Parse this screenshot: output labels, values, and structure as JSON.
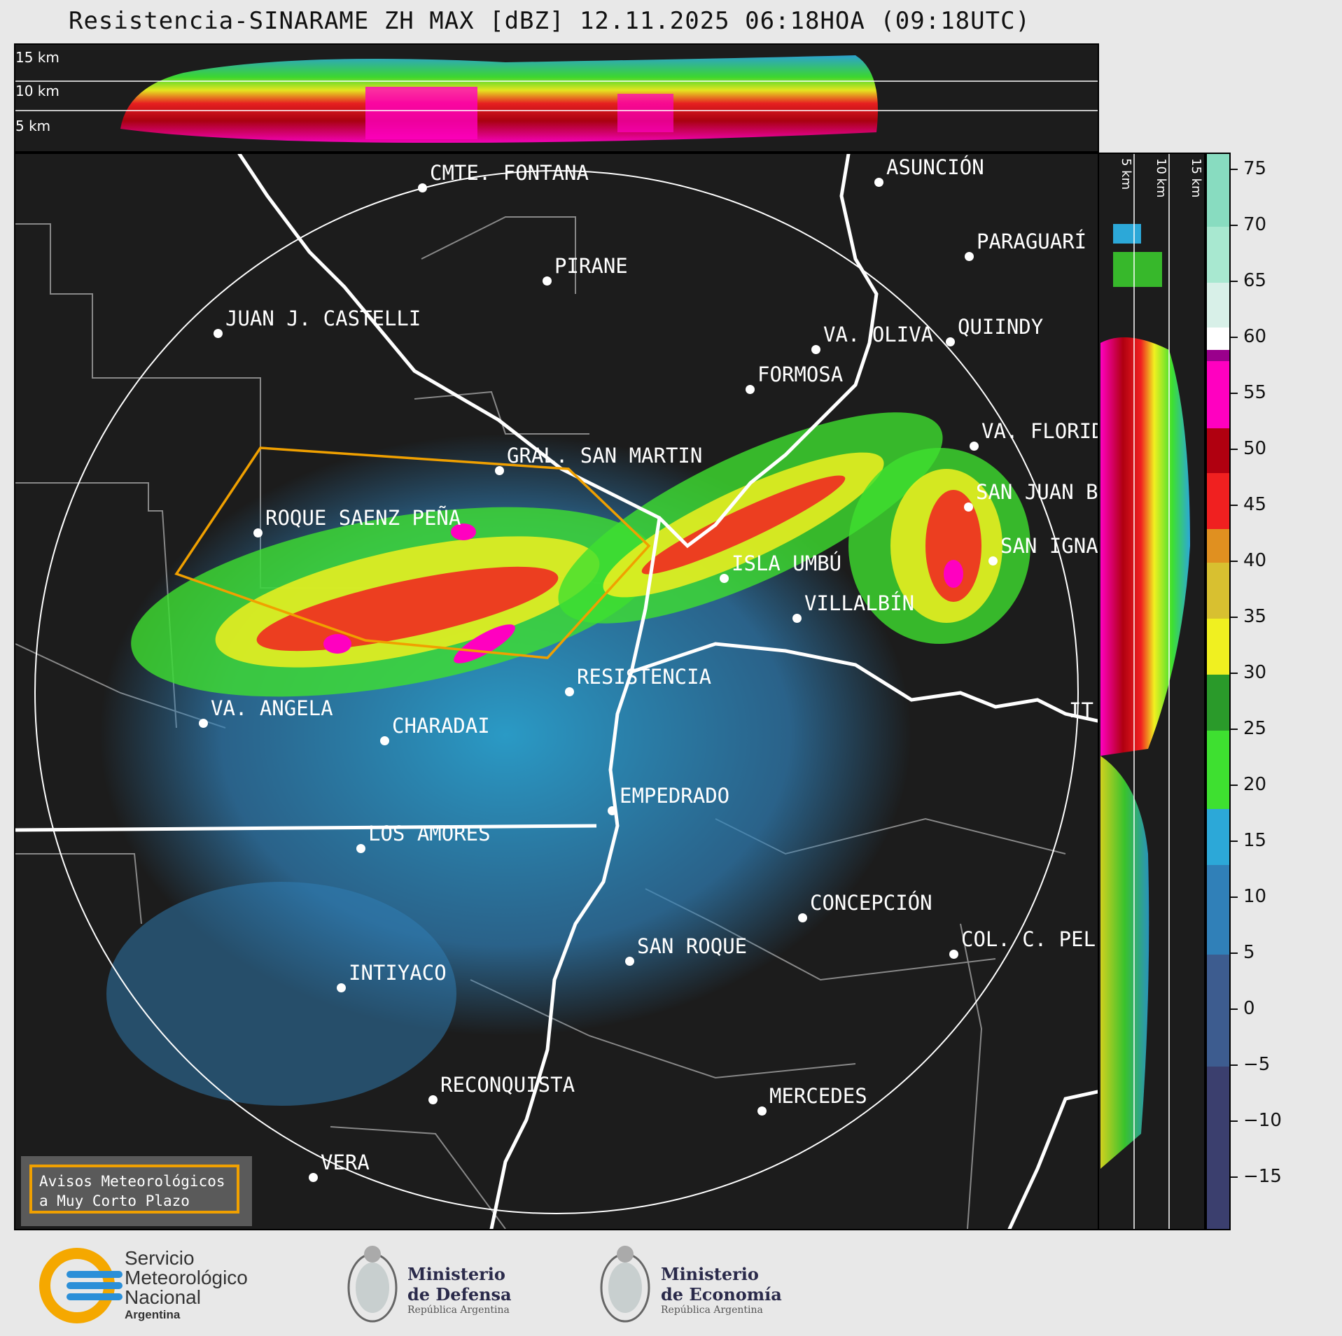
{
  "title": "Resistencia-SINARAME ZH MAX [dBZ] 12.11.2025 06:18HOA (09:18UTC)",
  "top_panel": {
    "height_labels": [
      "15 km",
      "10 km",
      "5 km"
    ]
  },
  "side_panel": {
    "height_labels": [
      "5 km",
      "10 km",
      "15 km"
    ]
  },
  "colorbar": {
    "ticks": [
      "75",
      "70",
      "65",
      "60",
      "55",
      "50",
      "45",
      "40",
      "35",
      "30",
      "25",
      "20",
      "15",
      "10",
      "5",
      "0",
      "−5",
      "−10",
      "−15"
    ],
    "tick_values": [
      75,
      70,
      65,
      60,
      55,
      50,
      45,
      40,
      35,
      30,
      25,
      20,
      15,
      10,
      5,
      0,
      -5,
      -10,
      -15
    ],
    "range": [
      -19.5,
      76.5
    ],
    "stops": [
      {
        "min": -19.5,
        "color": "#3b3f6e"
      },
      {
        "min": -5,
        "color": "#3d5c8f"
      },
      {
        "min": 5,
        "color": "#3080b8"
      },
      {
        "min": 13,
        "color": "#2ca8d8"
      },
      {
        "min": 18,
        "color": "#3ee030"
      },
      {
        "min": 25,
        "color": "#2a9a2a"
      },
      {
        "min": 30,
        "color": "#f0f020"
      },
      {
        "min": 35,
        "color": "#d8c030"
      },
      {
        "min": 40,
        "color": "#e09020"
      },
      {
        "min": 43,
        "color": "#f02020"
      },
      {
        "min": 48,
        "color": "#b00010"
      },
      {
        "min": 52,
        "color": "#ff00c0"
      },
      {
        "min": 58,
        "color": "#9a008c"
      },
      {
        "min": 59,
        "color": "#ffffff"
      },
      {
        "min": 61,
        "color": "#d8f0e8"
      },
      {
        "min": 65,
        "color": "#a8e8d0"
      },
      {
        "min": 70,
        "color": "#88dcc0"
      }
    ]
  },
  "cities": [
    {
      "name": "CMTE. FONTANA",
      "id": "cmte-fontana"
    },
    {
      "name": "ASUNCIÓN",
      "id": "asuncion"
    },
    {
      "name": "PARAGUARÍ",
      "id": "paraguari"
    },
    {
      "name": "PIRANE",
      "id": "pirane"
    },
    {
      "name": "JUAN J. CASTELLI",
      "id": "juan-j-castelli"
    },
    {
      "name": "VA. OLIVA",
      "id": "va-oliva"
    },
    {
      "name": "QUIINDY",
      "id": "quiindy"
    },
    {
      "name": "FORMOSA",
      "id": "formosa"
    },
    {
      "name": "VA. FLORIDA",
      "id": "va-florida"
    },
    {
      "name": "GRAL. SAN MARTIN",
      "id": "gral-san-martin"
    },
    {
      "name": "SAN JUAN B",
      "id": "san-juan-b"
    },
    {
      "name": "ROQUE SAENZ PEÑA",
      "id": "roque-saenz-pena"
    },
    {
      "name": "SAN IGNA",
      "id": "san-igna"
    },
    {
      "name": "ISLA UMBÚ",
      "id": "isla-umbu"
    },
    {
      "name": "VILLALBÍN",
      "id": "villalbin"
    },
    {
      "name": "RESISTENCIA",
      "id": "resistencia"
    },
    {
      "name": "IT",
      "id": "it"
    },
    {
      "name": "VA. ANGELA",
      "id": "va-angela"
    },
    {
      "name": "CHARADAI",
      "id": "charadai"
    },
    {
      "name": "EMPEDRADO",
      "id": "empedrado"
    },
    {
      "name": "LOS AMORES",
      "id": "los-amores"
    },
    {
      "name": "CONCEPCIÓN",
      "id": "concepcion"
    },
    {
      "name": "COL. C. PEL",
      "id": "col-c-pel"
    },
    {
      "name": "SAN ROQUE",
      "id": "san-roque"
    },
    {
      "name": "INTIYACO",
      "id": "intiyaco"
    },
    {
      "name": "RECONQUISTA",
      "id": "reconquista"
    },
    {
      "name": "MERCEDES",
      "id": "mercedes"
    },
    {
      "name": "VERA",
      "id": "vera"
    }
  ],
  "aviso": {
    "line1": "Avisos Meteorológicos",
    "line2": "a Muy Corto Plazo"
  },
  "footer": {
    "smn": {
      "line1": "Servicio",
      "line2": "Meteorológico",
      "line3": "Nacional",
      "line4": "Argentina"
    },
    "defensa": {
      "line1": "Ministerio",
      "line2": "de Defensa",
      "line3": "República Argentina"
    },
    "economia": {
      "line1": "Ministerio",
      "line2": "de Economía",
      "line3": "República Argentina"
    }
  },
  "colors": {
    "background": "#1c1c1c",
    "warning_outline": "#f0a000",
    "smn_blue": "#2b8fd8",
    "smn_yellow": "#f5a800"
  }
}
